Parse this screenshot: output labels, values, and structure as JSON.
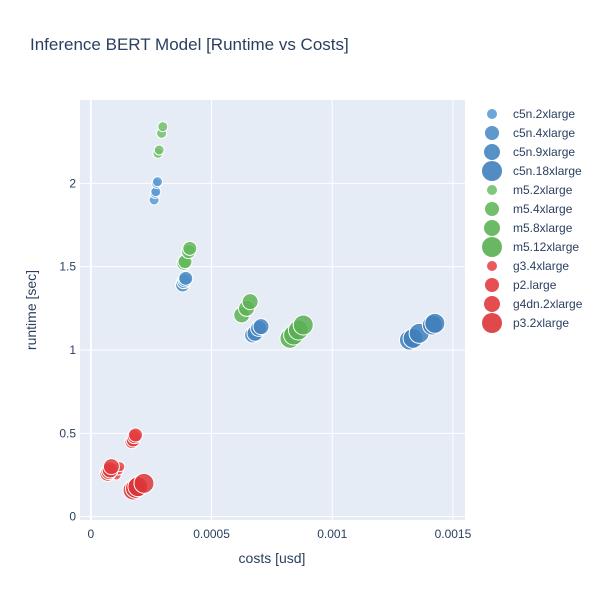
{
  "chart_data": {
    "type": "scatter",
    "title": "Inference BERT Model [Runtime vs Costs]",
    "xlabel": "costs [usd]",
    "ylabel": "runtime [sec]",
    "xlim": [
      -4.5e-05,
      0.00155
    ],
    "ylim": [
      -0.02,
      2.5
    ],
    "x_ticks": [
      {
        "value": 0,
        "label": "0"
      },
      {
        "value": 0.0005,
        "label": "0.0005"
      },
      {
        "value": 0.001,
        "label": "0.001"
      },
      {
        "value": 0.0015,
        "label": "0.0015"
      }
    ],
    "y_ticks": [
      {
        "value": 0,
        "label": "0"
      },
      {
        "value": 0.5,
        "label": "0.5"
      },
      {
        "value": 1,
        "label": "1"
      },
      {
        "value": 1.5,
        "label": "1.5"
      },
      {
        "value": 2,
        "label": "2"
      }
    ],
    "grid": true,
    "legend_position": "right",
    "marker_size_encodes": "instance size",
    "series": [
      {
        "name": "c5n.2xlarge",
        "color": "#5b9bd5",
        "marker_size": 3,
        "points": [
          [
            0.000262,
            1.9
          ],
          [
            0.000266,
            1.94
          ],
          [
            0.000269,
            1.95
          ],
          [
            0.000272,
            2.0
          ],
          [
            0.000276,
            2.01
          ]
        ]
      },
      {
        "name": "c5n.4xlarge",
        "color": "#4e8dc7",
        "marker_size": 5,
        "points": [
          [
            0.00038,
            1.39
          ],
          [
            0.000385,
            1.41
          ],
          [
            0.00039,
            1.42
          ],
          [
            0.000393,
            1.43
          ]
        ]
      },
      {
        "name": "c5n.9xlarge",
        "color": "#4585c0",
        "marker_size": 6,
        "points": [
          [
            0.00067,
            1.09
          ],
          [
            0.00068,
            1.1
          ],
          [
            0.000695,
            1.13
          ],
          [
            0.000705,
            1.14
          ]
        ]
      },
      {
        "name": "c5n.18xlarge",
        "color": "#3f7fbb",
        "marker_size": 8,
        "points": [
          [
            0.00132,
            1.06
          ],
          [
            0.001335,
            1.07
          ],
          [
            0.00136,
            1.1
          ],
          [
            0.001415,
            1.15
          ],
          [
            0.001425,
            1.16
          ]
        ]
      },
      {
        "name": "m5.2xlarge",
        "color": "#73c06c",
        "marker_size": 3,
        "points": [
          [
            0.000278,
            2.18
          ],
          [
            0.000283,
            2.2
          ],
          [
            0.000293,
            2.3
          ],
          [
            0.000298,
            2.34
          ]
        ]
      },
      {
        "name": "m5.4xlarge",
        "color": "#62b85a",
        "marker_size": 5,
        "points": [
          [
            0.000385,
            1.52
          ],
          [
            0.00039,
            1.53
          ],
          [
            0.000405,
            1.59
          ],
          [
            0.00041,
            1.61
          ]
        ]
      },
      {
        "name": "m5.8xlarge",
        "color": "#5db355",
        "marker_size": 6,
        "points": [
          [
            0.000625,
            1.21
          ],
          [
            0.000645,
            1.25
          ],
          [
            0.00066,
            1.29
          ]
        ]
      },
      {
        "name": "m5.12xlarge",
        "color": "#5aaf52",
        "marker_size": 8,
        "points": [
          [
            0.000825,
            1.07
          ],
          [
            0.00084,
            1.09
          ],
          [
            0.00086,
            1.12
          ],
          [
            0.00088,
            1.15
          ]
        ]
      },
      {
        "name": "g3.4xlarge",
        "color": "#e8474a",
        "marker_size": 3,
        "points": [
          [
            0.000105,
            0.25
          ],
          [
            0.000115,
            0.28
          ],
          [
            0.00012,
            0.3
          ]
        ]
      },
      {
        "name": "p2.large",
        "color": "#e33d40",
        "marker_size": 5,
        "points": [
          [
            0.00017,
            0.45
          ],
          [
            0.000175,
            0.46
          ],
          [
            0.00018,
            0.48
          ],
          [
            0.000185,
            0.49
          ]
        ]
      },
      {
        "name": "g4dn.2xlarge",
        "color": "#e03a3d",
        "marker_size": 6,
        "points": [
          [
            7e-05,
            0.26
          ],
          [
            7.5e-05,
            0.27
          ],
          [
            8e-05,
            0.28
          ],
          [
            8.5e-05,
            0.3
          ]
        ]
      },
      {
        "name": "p3.2xlarge",
        "color": "#dc3538",
        "marker_size": 8,
        "points": [
          [
            0.000175,
            0.16
          ],
          [
            0.000185,
            0.17
          ],
          [
            0.000195,
            0.18
          ],
          [
            0.00022,
            0.2
          ]
        ]
      }
    ]
  }
}
